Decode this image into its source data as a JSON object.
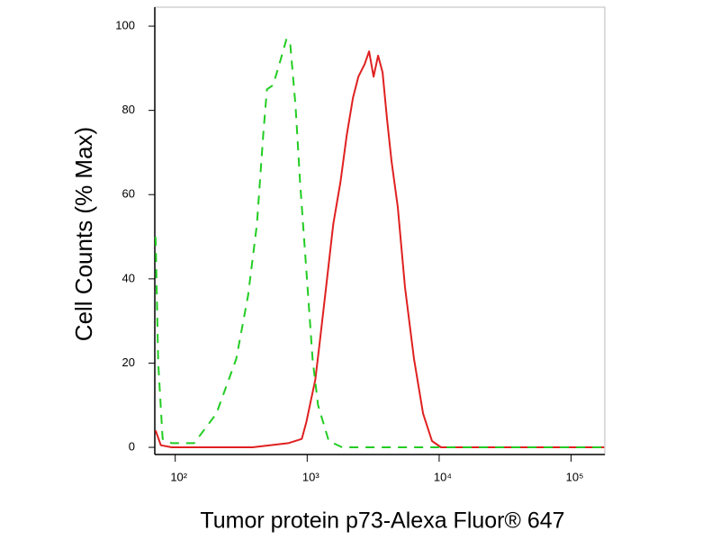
{
  "chart_data": {
    "type": "line",
    "xlabel": "Tumor protein p73-Alexa Fluor® 647",
    "ylabel": "Cell Counts (% Max)",
    "xscale": "log",
    "xlim": [
      70,
      180000
    ],
    "ylim": [
      -1.7,
      104.5
    ],
    "xticks": [
      {
        "value": 100,
        "label": "10²"
      },
      {
        "value": 1000,
        "label": "10³"
      },
      {
        "value": 10000,
        "label": "10⁴"
      },
      {
        "value": 100000,
        "label": "10⁵"
      }
    ],
    "yticks": [
      0,
      20,
      40,
      60,
      80,
      100
    ],
    "series": [
      {
        "color": "#e02020",
        "dash": false,
        "x": [
          71,
          77.8,
          93.9,
          385,
          719,
          910,
          985,
          1065,
          1151,
          1245,
          1389,
          1575,
          1786,
          1992,
          2222,
          2443,
          2725,
          2945,
          3186,
          3444,
          3724,
          4027,
          4355,
          4863,
          5508,
          6452,
          7551,
          8830,
          10330,
          178000
        ],
        "values": [
          4,
          0.5,
          0,
          0,
          1,
          2,
          6,
          11,
          16,
          25,
          38,
          53,
          63,
          74,
          83,
          88,
          91,
          94,
          88,
          93,
          89,
          78,
          68,
          57,
          38,
          21,
          8,
          1.5,
          0,
          0
        ]
      },
      {
        "color": "#22cc22",
        "dash": true,
        "x": [
          71,
          74.3,
          80.3,
          93.9,
          139,
          205,
          290,
          356,
          416,
          464,
          495,
          551,
          615,
          698,
          743,
          816,
          883,
          985,
          1099,
          1208,
          1457,
          1841,
          5508,
          178000
        ],
        "values": [
          50,
          20,
          2,
          1,
          1,
          8,
          21,
          36,
          53,
          74,
          85,
          86,
          91,
          97,
          96,
          81,
          63,
          42,
          21,
          10,
          1.5,
          0,
          0,
          0
        ]
      }
    ]
  }
}
